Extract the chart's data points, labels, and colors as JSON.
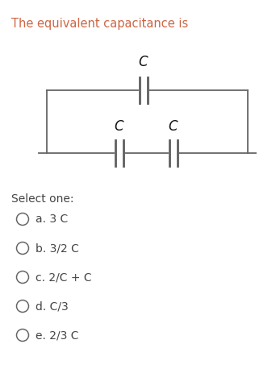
{
  "title": "The equivalent capacitance is",
  "title_color": "#cc6644",
  "bg_color": "#FFFFFF",
  "options": [
    "a. 3 C",
    "b. 3/2 C",
    "c. 2/C + C",
    "d. C/3",
    "e. 2/3 C"
  ],
  "option_color": "#444444",
  "select_label": "Select one:",
  "circuit_color": "#666666",
  "cap_label_color": "#111111"
}
